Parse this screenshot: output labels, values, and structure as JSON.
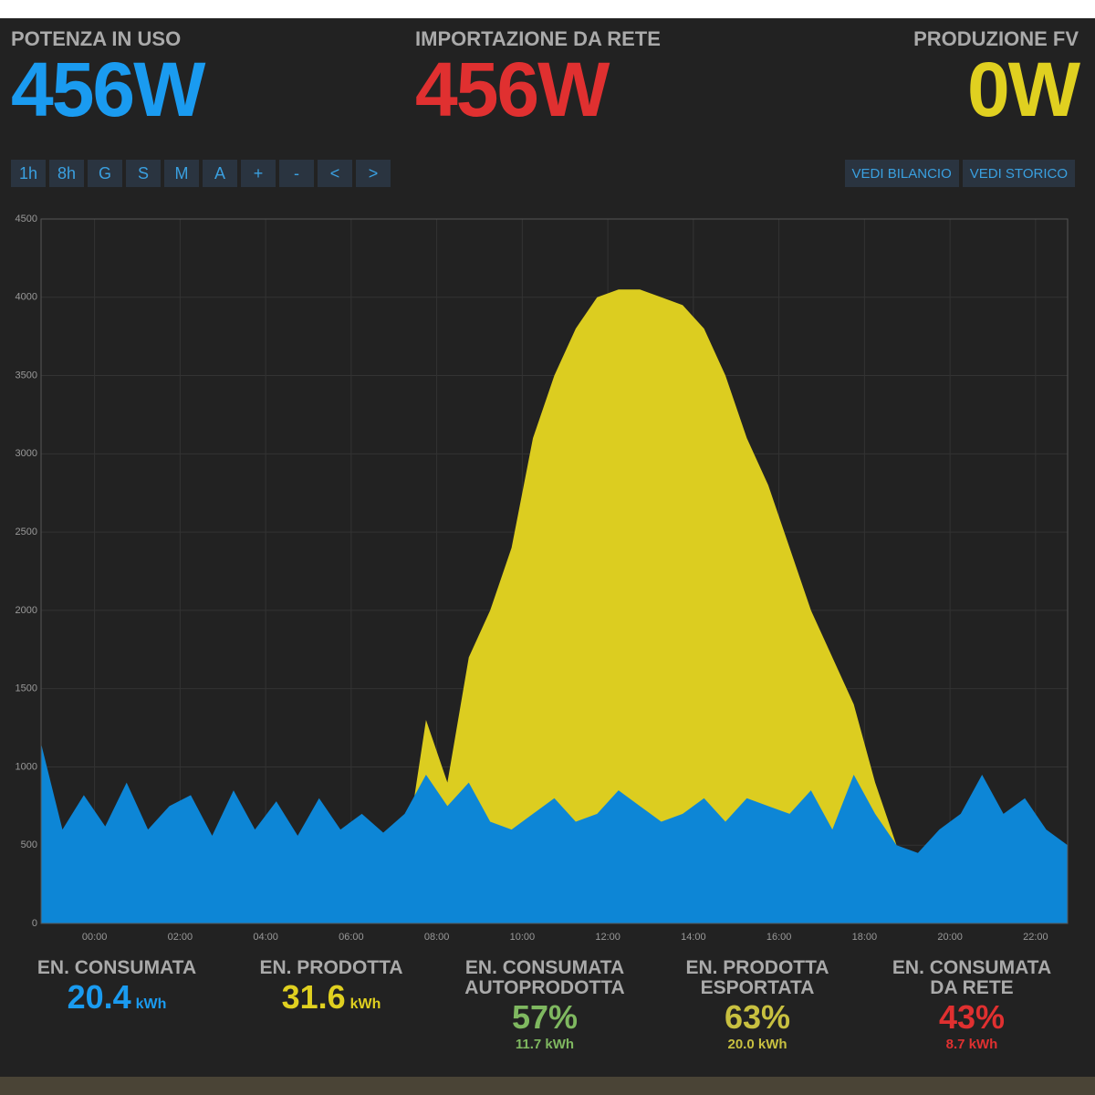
{
  "header": [
    {
      "label": "POTENZA IN USO",
      "value": "456W",
      "color": "#1a9bf0"
    },
    {
      "label": "IMPORTAZIONE DA RETE",
      "value": "456W",
      "color": "#e03030"
    },
    {
      "label": "PRODUZIONE FV",
      "value": "0W",
      "color": "#e0d020"
    }
  ],
  "buttons": [
    "1h",
    "8h",
    "G",
    "S",
    "M",
    "A",
    "+",
    "-",
    "<",
    ">"
  ],
  "links": [
    "VEDI BILANCIO",
    "VEDI STORICO"
  ],
  "chart_data": {
    "type": "area",
    "x": [
      -1.25,
      -0.75,
      -0.25,
      0.25,
      0.75,
      1.25,
      1.75,
      2.25,
      2.75,
      3.25,
      3.75,
      4.25,
      4.75,
      5.25,
      5.75,
      6.25,
      6.75,
      7.25,
      7.75,
      8.25,
      8.75,
      9.25,
      9.75,
      10.25,
      10.75,
      11.25,
      11.75,
      12.25,
      12.75,
      13.25,
      13.75,
      14.25,
      14.75,
      15.25,
      15.75,
      16.25,
      16.75,
      17.25,
      17.75,
      18.25,
      18.75,
      19.25,
      19.75,
      20.25,
      20.75,
      21.25,
      21.75,
      22.25,
      22.75
    ],
    "series": [
      {
        "color": "#dccd20",
        "values": [
          0,
          0,
          0,
          0,
          0,
          0,
          0,
          0,
          0,
          0,
          0,
          0,
          0,
          0,
          0,
          0,
          100,
          400,
          1300,
          900,
          1700,
          2000,
          2400,
          3100,
          3500,
          3800,
          4000,
          4050,
          4050,
          4000,
          3950,
          3800,
          3500,
          3100,
          2800,
          2400,
          2000,
          1700,
          1400,
          900,
          500,
          200,
          0,
          0,
          0,
          0,
          0,
          0,
          0
        ]
      },
      {
        "color": "#0d86d6",
        "values": [
          1150,
          600,
          820,
          620,
          900,
          600,
          750,
          820,
          560,
          850,
          600,
          780,
          560,
          800,
          600,
          700,
          580,
          700,
          950,
          750,
          900,
          650,
          600,
          700,
          800,
          650,
          700,
          850,
          750,
          650,
          700,
          800,
          650,
          800,
          750,
          700,
          850,
          600,
          950,
          700,
          500,
          450,
          600,
          700,
          950,
          700,
          800,
          600,
          500
        ]
      }
    ],
    "xlim": [
      -1.25,
      22.75
    ],
    "xticks": [
      {
        "value": 0,
        "label": "00:00"
      },
      {
        "value": 2,
        "label": "02:00"
      },
      {
        "value": 4,
        "label": "04:00"
      },
      {
        "value": 6,
        "label": "06:00"
      },
      {
        "value": 8,
        "label": "08:00"
      },
      {
        "value": 10,
        "label": "10:00"
      },
      {
        "value": 12,
        "label": "12:00"
      },
      {
        "value": 14,
        "label": "14:00"
      },
      {
        "value": 16,
        "label": "16:00"
      },
      {
        "value": 18,
        "label": "18:00"
      },
      {
        "value": 20,
        "label": "20:00"
      },
      {
        "value": 22,
        "label": "22:00"
      }
    ],
    "ylim": [
      0,
      4500
    ],
    "yticks": [
      0,
      500,
      1000,
      1500,
      2000,
      2500,
      3000,
      3500,
      4000,
      4500
    ],
    "grid": true
  },
  "stats": [
    {
      "label": "EN. CONSUMATA",
      "value": "20.4",
      "unit": "kWh",
      "color": "#1a9bf0"
    },
    {
      "label": "EN. PRODOTTA",
      "value": "31.6",
      "unit": "kWh",
      "color": "#e0d020"
    },
    {
      "label": "EN. CONSUMATA AUTOPRODOTTA",
      "value": "57%",
      "sub": "11.7 kWh",
      "color": "#7fb860"
    },
    {
      "label": "EN. PRODOTTA ESPORTATA",
      "value": "63%",
      "sub": "20.0 kWh",
      "color": "#c8c040"
    },
    {
      "label": "EN. CONSUMATA DA RETE",
      "value": "43%",
      "sub": "8.7 kWh",
      "color": "#e03030"
    }
  ]
}
